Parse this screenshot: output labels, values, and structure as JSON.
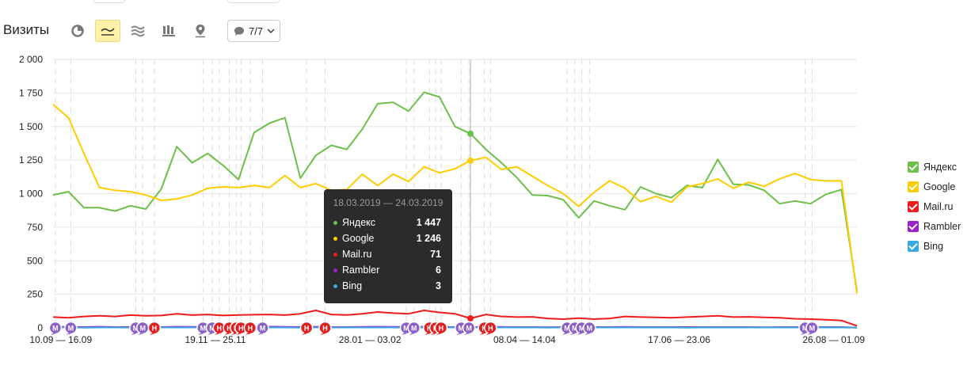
{
  "header": {
    "title": "Визиты",
    "annotations_label": "7/7"
  },
  "toolbar": {
    "tools": [
      {
        "name": "pie-chart-icon",
        "active": false
      },
      {
        "name": "line-chart-icon",
        "active": true
      },
      {
        "name": "area-chart-icon",
        "active": false
      },
      {
        "name": "bar-chart-icon",
        "active": false
      },
      {
        "name": "map-icon",
        "active": false
      }
    ]
  },
  "colors": {
    "yandex": "#6cc04a",
    "google": "#ffcc00",
    "mailru": "#ee1c1c",
    "rambler": "#9a20c9",
    "bing": "#3aa8e0",
    "annotation_m": "#8a5fc7",
    "annotation_h": "#e02020"
  },
  "chart_data": {
    "type": "line",
    "ylim": [
      0,
      2000
    ],
    "y_ticks": [
      "0",
      "250",
      "500",
      "750",
      "1 000",
      "1 250",
      "1 500",
      "1 750",
      "2 000"
    ],
    "x_tick_labels": [
      {
        "index": 0.5,
        "label": "10.09 — 16.09"
      },
      {
        "index": 10.5,
        "label": "19.11 — 25.11"
      },
      {
        "index": 20.5,
        "label": "28.01 — 03.02"
      },
      {
        "index": 30.5,
        "label": "08.04 — 14.04"
      },
      {
        "index": 40.5,
        "label": "17.06 — 23.06"
      },
      {
        "index": 50.5,
        "label": "26.08 — 01.09"
      }
    ],
    "series": [
      {
        "name": "Яндекс",
        "key": "yandex",
        "values": [
          990,
          1015,
          895,
          895,
          870,
          910,
          885,
          1035,
          1350,
          1230,
          1300,
          1210,
          1105,
          1455,
          1525,
          1565,
          1115,
          1285,
          1360,
          1330,
          1480,
          1670,
          1680,
          1615,
          1755,
          1720,
          1500,
          1447,
          1330,
          1230,
          1120,
          990,
          985,
          955,
          820,
          945,
          910,
          880,
          1050,
          1000,
          970,
          1060,
          1045,
          1255,
          1070,
          1065,
          1025,
          925,
          945,
          925,
          995,
          1030,
          275
        ]
      },
      {
        "name": "Google",
        "key": "google",
        "values": [
          1665,
          1565,
          1300,
          1045,
          1025,
          1015,
          990,
          950,
          960,
          990,
          1040,
          1050,
          1045,
          1060,
          1045,
          1135,
          1045,
          1075,
          1025,
          1030,
          1145,
          1060,
          1145,
          1090,
          1200,
          1155,
          1185,
          1246,
          1270,
          1180,
          1200,
          1130,
          1060,
          1000,
          905,
          1010,
          1095,
          1040,
          940,
          980,
          935,
          1050,
          1075,
          1110,
          1040,
          1085,
          1055,
          1110,
          1150,
          1105,
          1095,
          1095,
          255
        ]
      },
      {
        "name": "Mail.ru",
        "key": "mailru",
        "values": [
          80,
          75,
          85,
          90,
          85,
          95,
          90,
          92,
          105,
          95,
          100,
          92,
          96,
          98,
          100,
          95,
          105,
          130,
          100,
          96,
          105,
          118,
          110,
          105,
          130,
          115,
          105,
          71,
          100,
          85,
          80,
          82,
          70,
          65,
          72,
          65,
          70,
          85,
          80,
          78,
          75,
          80,
          85,
          90,
          80,
          82,
          78,
          75,
          68,
          65,
          60,
          55,
          15
        ]
      },
      {
        "name": "Rambler",
        "key": "rambler",
        "values": [
          8,
          7,
          6,
          8,
          6,
          6,
          7,
          6,
          8,
          7,
          7,
          6,
          6,
          7,
          9,
          7,
          6,
          8,
          6,
          6,
          7,
          8,
          7,
          7,
          8,
          6,
          6,
          6,
          6,
          7,
          6,
          6,
          5,
          6,
          6,
          6,
          6,
          7,
          6,
          6,
          6,
          6,
          6,
          6,
          6,
          6,
          5,
          6,
          6,
          6,
          6,
          6,
          2
        ]
      },
      {
        "name": "Bing",
        "key": "bing",
        "values": [
          3,
          3,
          2,
          3,
          3,
          2,
          3,
          3,
          3,
          3,
          3,
          2,
          3,
          3,
          3,
          3,
          2,
          3,
          3,
          3,
          3,
          3,
          3,
          2,
          3,
          3,
          3,
          3,
          3,
          3,
          3,
          3,
          2,
          3,
          3,
          3,
          3,
          3,
          3,
          3,
          3,
          2,
          3,
          3,
          3,
          3,
          3,
          3,
          3,
          3,
          3,
          3,
          1
        ]
      }
    ],
    "highlight_index": 27,
    "tooltip": {
      "title": "18.03.2019 — 24.03.2019",
      "rows": [
        {
          "key": "yandex",
          "name": "Яндекс",
          "value": "1 447"
        },
        {
          "key": "google",
          "name": "Google",
          "value": "1 246"
        },
        {
          "key": "mailru",
          "name": "Mail.ru",
          "value": "71"
        },
        {
          "key": "rambler",
          "name": "Rambler",
          "value": "6"
        },
        {
          "key": "bing",
          "name": "Bing",
          "value": "3"
        }
      ]
    },
    "annotations": [
      {
        "index": 0.15,
        "type": "М"
      },
      {
        "index": 1.15,
        "type": "М"
      },
      {
        "index": 5.35,
        "type": "М"
      },
      {
        "index": 5.8,
        "type": "М"
      },
      {
        "index": 6.55,
        "type": "Н"
      },
      {
        "index": 9.7,
        "type": "М"
      },
      {
        "index": 10.3,
        "type": "М"
      },
      {
        "index": 10.75,
        "type": "Н"
      },
      {
        "index": 11.4,
        "type": "Н"
      },
      {
        "index": 11.85,
        "type": "Н"
      },
      {
        "index": 12.15,
        "type": "Н"
      },
      {
        "index": 12.75,
        "type": "Н"
      },
      {
        "index": 13.55,
        "type": "М"
      },
      {
        "index": 16.4,
        "type": "Н"
      },
      {
        "index": 17.6,
        "type": "Н"
      },
      {
        "index": 22.85,
        "type": "М"
      },
      {
        "index": 23.35,
        "type": "М"
      },
      {
        "index": 24.35,
        "type": "Н"
      },
      {
        "index": 24.75,
        "type": "Н"
      },
      {
        "index": 25.1,
        "type": "Н"
      },
      {
        "index": 26.4,
        "type": "М"
      },
      {
        "index": 26.9,
        "type": "М"
      },
      {
        "index": 27.9,
        "type": "Н"
      },
      {
        "index": 28.3,
        "type": "Н"
      },
      {
        "index": 33.25,
        "type": "М"
      },
      {
        "index": 33.75,
        "type": "М"
      },
      {
        "index": 34.2,
        "type": "М"
      },
      {
        "index": 34.7,
        "type": "М"
      },
      {
        "index": 48.65,
        "type": "М"
      },
      {
        "index": 49.1,
        "type": "М"
      }
    ],
    "legend_placement": "right"
  }
}
